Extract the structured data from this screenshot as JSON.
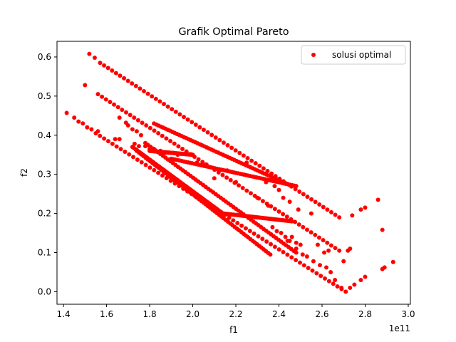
{
  "chart_data": {
    "type": "scatter",
    "title": "Grafik Optimal Pareto",
    "xlabel": "f1",
    "ylabel": "f2",
    "x_offset_label": "1e11",
    "xlim": [
      1.37,
      3.01
    ],
    "ylim": [
      -0.032,
      0.64
    ],
    "x_ticks": [
      1.4,
      1.6,
      1.8,
      2.0,
      2.2,
      2.4,
      2.6,
      2.8,
      3.0
    ],
    "x_tick_labels": [
      "1.4",
      "1.6",
      "1.8",
      "2.0",
      "2.2",
      "2.4",
      "2.6",
      "2.8",
      "3.0"
    ],
    "y_ticks": [
      0.0,
      0.1,
      0.2,
      0.3,
      0.4,
      0.5,
      0.6
    ],
    "y_tick_labels": [
      "0.0",
      "0.1",
      "0.2",
      "0.3",
      "0.4",
      "0.5",
      "0.6"
    ],
    "grid": false,
    "legend_position": "top-right",
    "series": [
      {
        "name": "solusi optimal",
        "color": "#ff0000",
        "dense_segments": [
          [
            1.55,
            0.405,
            2.71,
            0.0
          ],
          [
            1.56,
            0.505,
            2.68,
            0.105
          ],
          [
            1.57,
            0.585,
            2.68,
            0.19
          ],
          [
            1.72,
            0.37,
            2.14,
            0.2
          ],
          [
            1.78,
            0.38,
            2.48,
            0.1
          ],
          [
            1.82,
            0.43,
            2.46,
            0.27
          ],
          [
            1.9,
            0.34,
            2.48,
            0.27
          ],
          [
            1.74,
            0.36,
            2.36,
            0.095
          ],
          [
            2.14,
            0.2,
            2.46,
            0.18
          ],
          [
            1.8,
            0.36,
            2.0,
            0.35
          ]
        ],
        "points": [
          [
            1.415,
            0.457
          ],
          [
            1.45,
            0.445
          ],
          [
            1.47,
            0.435
          ],
          [
            1.49,
            0.43
          ],
          [
            1.5,
            0.528
          ],
          [
            1.51,
            0.42
          ],
          [
            1.52,
            0.608
          ],
          [
            1.53,
            0.415
          ],
          [
            1.545,
            0.598
          ],
          [
            1.56,
            0.41
          ],
          [
            1.64,
            0.39
          ],
          [
            1.66,
            0.445
          ],
          [
            1.66,
            0.39
          ],
          [
            1.69,
            0.432
          ],
          [
            1.7,
            0.425
          ],
          [
            1.72,
            0.415
          ],
          [
            1.74,
            0.41
          ],
          [
            1.76,
            0.4
          ],
          [
            1.73,
            0.378
          ],
          [
            1.75,
            0.372
          ],
          [
            1.78,
            0.372
          ],
          [
            1.8,
            0.365
          ],
          [
            1.82,
            0.365
          ],
          [
            1.85,
            0.36
          ],
          [
            1.87,
            0.355
          ],
          [
            1.91,
            0.355
          ],
          [
            1.93,
            0.35
          ],
          [
            2.1,
            0.29
          ],
          [
            2.2,
            0.28
          ],
          [
            2.3,
            0.24
          ],
          [
            2.35,
            0.22
          ],
          [
            2.37,
            0.165
          ],
          [
            2.39,
            0.155
          ],
          [
            2.41,
            0.15
          ],
          [
            2.43,
            0.14
          ],
          [
            2.45,
            0.13
          ],
          [
            2.46,
            0.14
          ],
          [
            2.48,
            0.125
          ],
          [
            2.5,
            0.12
          ],
          [
            2.51,
            0.095
          ],
          [
            2.53,
            0.09
          ],
          [
            2.56,
            0.078
          ],
          [
            2.59,
            0.068
          ],
          [
            2.62,
            0.062
          ],
          [
            2.64,
            0.05
          ],
          [
            2.61,
            0.1
          ],
          [
            2.63,
            0.105
          ],
          [
            2.66,
            0.03
          ],
          [
            2.69,
            0.01
          ],
          [
            2.73,
            0.01
          ],
          [
            2.75,
            0.018
          ],
          [
            2.78,
            0.03
          ],
          [
            2.8,
            0.038
          ],
          [
            2.72,
            0.105
          ],
          [
            2.73,
            0.11
          ],
          [
            2.74,
            0.195
          ],
          [
            2.78,
            0.21
          ],
          [
            2.8,
            0.215
          ],
          [
            2.86,
            0.235
          ],
          [
            2.88,
            0.158
          ],
          [
            2.88,
            0.058
          ],
          [
            2.89,
            0.062
          ],
          [
            2.93,
            0.076
          ],
          [
            2.58,
            0.12
          ],
          [
            2.7,
            0.078
          ],
          [
            2.48,
            0.11
          ],
          [
            2.44,
            0.13
          ],
          [
            2.25,
            0.33
          ],
          [
            2.34,
            0.28
          ],
          [
            2.38,
            0.27
          ],
          [
            2.42,
            0.24
          ],
          [
            2.45,
            0.23
          ],
          [
            2.49,
            0.21
          ],
          [
            2.55,
            0.2
          ],
          [
            2.4,
            0.26
          ],
          [
            2.06,
            0.325
          ],
          [
            2.16,
            0.31
          ],
          [
            2.02,
            0.33
          ]
        ]
      }
    ]
  }
}
